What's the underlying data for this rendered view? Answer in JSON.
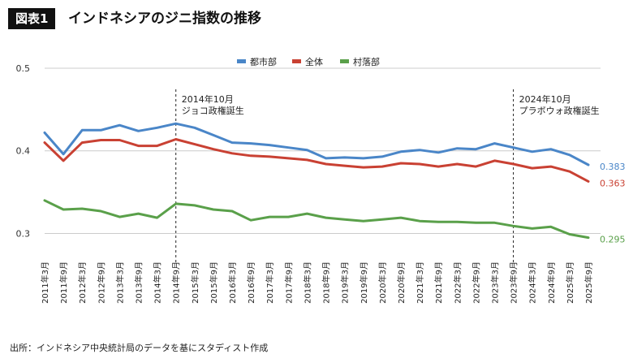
{
  "figure": {
    "label": "図表1",
    "title": "インドネシアのジニ指数の推移",
    "source": "出所：インドネシア中央統計局のデータを基にスタディスト作成"
  },
  "chart_data": {
    "type": "line",
    "title": "インドネシアのジニ指数の推移",
    "xlabel": "",
    "ylabel": "",
    "ylim": [
      0.27,
      0.5
    ],
    "yticks": [
      0.3,
      0.4,
      0.5
    ],
    "ytick_labels": [
      "0.3",
      "0.4",
      "0.5"
    ],
    "grid": true,
    "legend_position": "top-center",
    "categories": [
      "2011年3月",
      "2011年9月",
      "2012年3月",
      "2012年9月",
      "2013年3月",
      "2013年9月",
      "2014年3月",
      "2014年9月",
      "2015年3月",
      "2015年9月",
      "2016年3月",
      "2016年9月",
      "2017年3月",
      "2017年9月",
      "2018年3月",
      "2018年9月",
      "2019年3月",
      "2019年9月",
      "2020年3月",
      "2020年9月",
      "2021年3月",
      "2021年9月",
      "2022年3月",
      "2022年9月",
      "2023年3月",
      "2023年9月",
      "2024年3月",
      "2024年9月",
      "2025年3月",
      "2025年9月"
    ],
    "series": [
      {
        "name": "都市部",
        "color": "#4a86c8",
        "end_label": "0.383",
        "values": [
          0.422,
          0.396,
          0.425,
          0.425,
          0.431,
          0.424,
          0.428,
          0.433,
          0.428,
          0.419,
          0.41,
          0.409,
          0.407,
          0.404,
          0.401,
          0.391,
          0.392,
          0.391,
          0.393,
          0.399,
          0.401,
          0.398,
          0.403,
          0.402,
          0.409,
          0.404,
          0.399,
          0.402,
          0.395,
          0.383
        ]
      },
      {
        "name": "全体",
        "color": "#c94133",
        "end_label": "0.363",
        "values": [
          0.41,
          0.388,
          0.41,
          0.413,
          0.413,
          0.406,
          0.406,
          0.414,
          0.408,
          0.402,
          0.397,
          0.394,
          0.393,
          0.391,
          0.389,
          0.384,
          0.382,
          0.38,
          0.381,
          0.385,
          0.384,
          0.381,
          0.384,
          0.381,
          0.388,
          0.384,
          0.379,
          0.381,
          0.375,
          0.363
        ]
      },
      {
        "name": "村落部",
        "color": "#5aa04a",
        "end_label": "0.295",
        "values": [
          0.34,
          0.329,
          0.33,
          0.327,
          0.32,
          0.324,
          0.319,
          0.336,
          0.334,
          0.329,
          0.327,
          0.316,
          0.32,
          0.32,
          0.324,
          0.319,
          0.317,
          0.315,
          0.317,
          0.319,
          0.315,
          0.314,
          0.314,
          0.313,
          0.313,
          0.309,
          0.306,
          0.308,
          0.299,
          0.295
        ]
      }
    ],
    "annotations": [
      {
        "at": "2014年9月",
        "lines": [
          "2014年10月",
          "ジョコ政権誕生"
        ]
      },
      {
        "at": "2023年9月",
        "lines": [
          "2024年10月",
          "プラボウォ政権誕生"
        ]
      }
    ]
  }
}
